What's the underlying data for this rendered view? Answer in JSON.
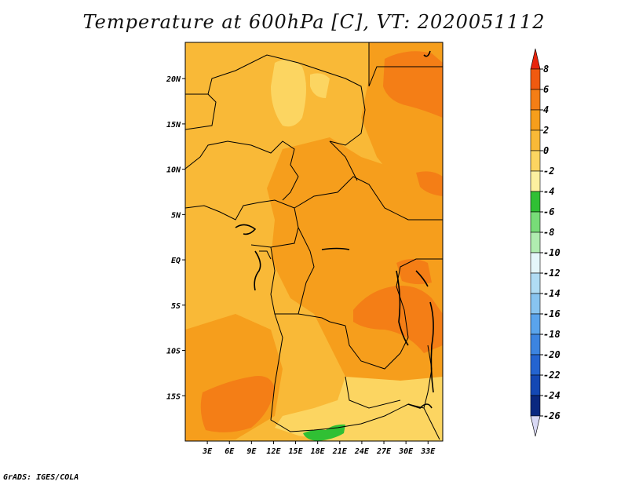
{
  "title": "Temperature at 600hPa [C], VT: 2020051112",
  "credit": "GrADS: IGES/COLA",
  "map": {
    "lon_ticks": [
      "3E",
      "6E",
      "9E",
      "12E",
      "15E",
      "18E",
      "21E",
      "24E",
      "27E",
      "30E",
      "33E"
    ],
    "lat_ticks": [
      "20N",
      "15N",
      "10N",
      "5N",
      "EQ",
      "5S",
      "10S",
      "15S"
    ],
    "lon_range": [
      0,
      35
    ],
    "lat_range": [
      -20,
      24
    ]
  },
  "colorbar": {
    "labels": [
      "8",
      "6",
      "4",
      "2",
      "0",
      "-2",
      "-4",
      "-6",
      "-8",
      "-10",
      "-12",
      "-14",
      "-16",
      "-18",
      "-20",
      "-22",
      "-24",
      "-26"
    ],
    "colors": [
      "#e8240c",
      "#f05a10",
      "#f47e16",
      "#f69e1c",
      "#f9b937",
      "#fcd561",
      "#fcf0a0",
      "#30c034",
      "#78dc78",
      "#b0ecb0",
      "#e4f6fa",
      "#b0dcf4",
      "#88c4f0",
      "#5aa4ec",
      "#3c84e0",
      "#2464d0",
      "#1448b4",
      "#0a2880",
      "#d8d8f4"
    ]
  }
}
